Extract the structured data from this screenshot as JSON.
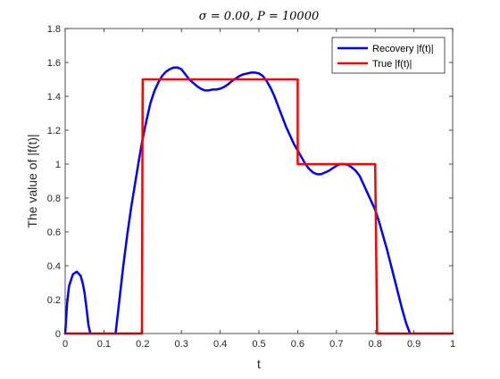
{
  "chart_data": {
    "type": "line",
    "title": "σ = 0.00,    P = 10000",
    "xlabel": "t",
    "ylabel": "The value of |f(t)|",
    "xlim": [
      0,
      1
    ],
    "ylim": [
      0,
      1.8
    ],
    "xticks": [
      0,
      0.1,
      0.2,
      0.3,
      0.4,
      0.5,
      0.6,
      0.7,
      0.8,
      0.9,
      1
    ],
    "xtick_labels": [
      "0",
      "0.1",
      "0.2",
      "0.3",
      "0.4",
      "0.5",
      "0.6",
      "0.7",
      "0.8",
      "0.9",
      "1"
    ],
    "yticks": [
      0,
      0.2,
      0.4,
      0.6,
      0.8,
      1,
      1.2,
      1.4,
      1.6,
      1.8
    ],
    "ytick_labels": [
      "0",
      "0.2",
      "0.4",
      "0.6",
      "0.8",
      "1",
      "1.2",
      "1.4",
      "1.6",
      "1.8"
    ],
    "grid": false,
    "legend_position": "top-right",
    "series": [
      {
        "name": "Recovery |f(t)|",
        "color": "#0000ff",
        "segments": [
          {
            "x": [
              0.0,
              0.005,
              0.01,
              0.02,
              0.03,
              0.04,
              0.045,
              0.05,
              0.055,
              0.06,
              0.065
            ],
            "y": [
              0.0,
              0.18,
              0.28,
              0.35,
              0.365,
              0.34,
              0.3,
              0.24,
              0.15,
              0.05,
              0.0
            ]
          },
          {
            "x": [
              0.13,
              0.14,
              0.15,
              0.16,
              0.17,
              0.18,
              0.19,
              0.2,
              0.21,
              0.22,
              0.23,
              0.24,
              0.25,
              0.26,
              0.27,
              0.28,
              0.29,
              0.3,
              0.31,
              0.32,
              0.33,
              0.34,
              0.35,
              0.36,
              0.37,
              0.38,
              0.39,
              0.4,
              0.41,
              0.42,
              0.43,
              0.44,
              0.45,
              0.46,
              0.47,
              0.48,
              0.49,
              0.5,
              0.51,
              0.52,
              0.53,
              0.54,
              0.55,
              0.56,
              0.57,
              0.58,
              0.59,
              0.6,
              0.61,
              0.62,
              0.63,
              0.64,
              0.65,
              0.66,
              0.67,
              0.68,
              0.69,
              0.7,
              0.71,
              0.72,
              0.73,
              0.74,
              0.75,
              0.76,
              0.77,
              0.78,
              0.79,
              0.8,
              0.81,
              0.82,
              0.83,
              0.84,
              0.85,
              0.86,
              0.87,
              0.88,
              0.885,
              0.89
            ],
            "y": [
              0.0,
              0.2,
              0.4,
              0.58,
              0.74,
              0.88,
              1.02,
              1.15,
              1.26,
              1.36,
              1.43,
              1.48,
              1.52,
              1.545,
              1.56,
              1.57,
              1.57,
              1.56,
              1.53,
              1.5,
              1.48,
              1.46,
              1.445,
              1.435,
              1.435,
              1.44,
              1.44,
              1.445,
              1.455,
              1.47,
              1.49,
              1.505,
              1.52,
              1.53,
              1.535,
              1.54,
              1.54,
              1.535,
              1.52,
              1.49,
              1.45,
              1.4,
              1.34,
              1.28,
              1.22,
              1.17,
              1.12,
              1.08,
              1.04,
              1.0,
              0.97,
              0.95,
              0.94,
              0.94,
              0.95,
              0.96,
              0.975,
              0.99,
              1.0,
              1.0,
              0.995,
              0.98,
              0.96,
              0.93,
              0.88,
              0.83,
              0.78,
              0.73,
              0.66,
              0.58,
              0.5,
              0.41,
              0.32,
              0.23,
              0.14,
              0.06,
              0.03,
              0.0
            ]
          }
        ]
      },
      {
        "name": "True |f(t)|",
        "color": "#ff0000",
        "segments": [
          {
            "x": [
              0,
              0.198,
              0.2,
              0.6,
              0.6,
              0.8,
              0.805,
              1
            ],
            "y": [
              0,
              0,
              1.5,
              1.5,
              1.0,
              1.0,
              0,
              0
            ]
          }
        ]
      }
    ]
  }
}
